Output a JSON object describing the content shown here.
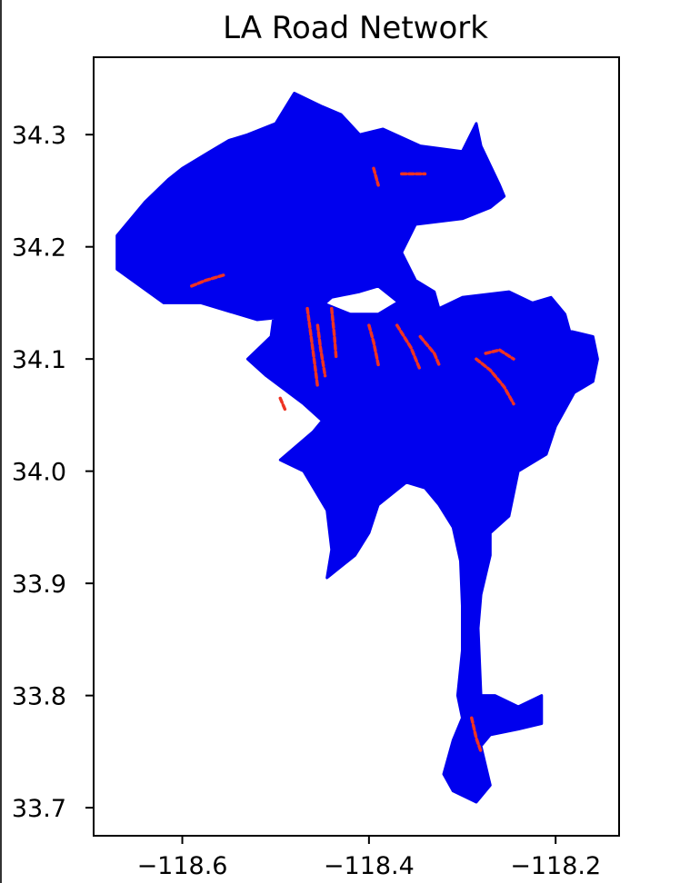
{
  "chart_data": {
    "type": "map",
    "title": "LA Road Network",
    "xlabel": "",
    "ylabel": "",
    "xlim": [
      -118.695,
      -118.132
    ],
    "ylim": [
      33.675,
      34.369
    ],
    "x_ticks": [
      -118.6,
      -118.4,
      -118.2
    ],
    "x_tick_labels": [
      "−118.6",
      "−118.4",
      "−118.2"
    ],
    "y_ticks": [
      33.7,
      33.8,
      33.9,
      34.0,
      34.1,
      34.2,
      34.3
    ],
    "y_tick_labels": [
      "33.7",
      "33.8",
      "33.9",
      "34.0",
      "34.1",
      "34.2",
      "34.3"
    ],
    "grid": false,
    "series": [
      {
        "color": "#0000ee",
        "outline": [
          [
            -118.48,
            34.337
          ],
          [
            -118.45,
            34.325
          ],
          [
            -118.43,
            34.318
          ],
          [
            -118.41,
            34.3
          ],
          [
            -118.385,
            34.305
          ],
          [
            -118.345,
            34.29
          ],
          [
            -118.3,
            34.285
          ],
          [
            -118.285,
            34.31
          ],
          [
            -118.28,
            34.29
          ],
          [
            -118.26,
            34.255
          ],
          [
            -118.255,
            34.245
          ],
          [
            -118.27,
            34.235
          ],
          [
            -118.3,
            34.225
          ],
          [
            -118.35,
            34.22
          ],
          [
            -118.365,
            34.195
          ],
          [
            -118.35,
            34.17
          ],
          [
            -118.33,
            34.16
          ],
          [
            -118.325,
            34.145
          ],
          [
            -118.3,
            34.155
          ],
          [
            -118.25,
            34.16
          ],
          [
            -118.225,
            34.15
          ],
          [
            -118.205,
            34.155
          ],
          [
            -118.19,
            34.14
          ],
          [
            -118.185,
            34.125
          ],
          [
            -118.16,
            34.12
          ],
          [
            -118.155,
            34.1
          ],
          [
            -118.16,
            34.08
          ],
          [
            -118.18,
            34.07
          ],
          [
            -118.2,
            34.04
          ],
          [
            -118.21,
            34.015
          ],
          [
            -118.24,
            34.0
          ],
          [
            -118.245,
            33.98
          ],
          [
            -118.25,
            33.96
          ],
          [
            -118.27,
            33.945
          ],
          [
            -118.27,
            33.925
          ],
          [
            -118.28,
            33.89
          ],
          [
            -118.283,
            33.86
          ],
          [
            -118.28,
            33.8
          ],
          [
            -118.265,
            33.8
          ],
          [
            -118.24,
            33.79
          ],
          [
            -118.215,
            33.8
          ],
          [
            -118.215,
            33.775
          ],
          [
            -118.24,
            33.77
          ],
          [
            -118.27,
            33.765
          ],
          [
            -118.28,
            33.755
          ],
          [
            -118.27,
            33.72
          ],
          [
            -118.285,
            33.705
          ],
          [
            -118.31,
            33.715
          ],
          [
            -118.32,
            33.73
          ],
          [
            -118.31,
            33.76
          ],
          [
            -118.3,
            33.78
          ],
          [
            -118.305,
            33.8
          ],
          [
            -118.3,
            33.84
          ],
          [
            -118.3,
            33.88
          ],
          [
            -118.302,
            33.92
          ],
          [
            -118.31,
            33.95
          ],
          [
            -118.325,
            33.97
          ],
          [
            -118.34,
            33.985
          ],
          [
            -118.36,
            33.99
          ],
          [
            -118.39,
            33.97
          ],
          [
            -118.4,
            33.945
          ],
          [
            -118.415,
            33.925
          ],
          [
            -118.445,
            33.905
          ],
          [
            -118.44,
            33.93
          ],
          [
            -118.445,
            33.965
          ],
          [
            -118.47,
            34.0
          ],
          [
            -118.495,
            34.01
          ],
          [
            -118.46,
            34.035
          ],
          [
            -118.45,
            34.045
          ],
          [
            -118.47,
            34.06
          ],
          [
            -118.51,
            34.085
          ],
          [
            -118.53,
            34.1
          ],
          [
            -118.505,
            34.12
          ],
          [
            -118.5,
            34.15
          ],
          [
            -118.47,
            34.17
          ],
          [
            -118.45,
            34.15
          ],
          [
            -118.42,
            34.14
          ],
          [
            -118.39,
            34.14
          ],
          [
            -118.37,
            34.15
          ],
          [
            -118.36,
            34.145
          ],
          [
            -118.39,
            34.165
          ],
          [
            -118.41,
            34.16
          ],
          [
            -118.44,
            34.155
          ],
          [
            -118.46,
            34.14
          ],
          [
            -118.52,
            34.135
          ],
          [
            -118.58,
            34.15
          ],
          [
            -118.62,
            34.15
          ],
          [
            -118.67,
            34.18
          ],
          [
            -118.67,
            34.21
          ],
          [
            -118.64,
            34.24
          ],
          [
            -118.615,
            34.26
          ],
          [
            -118.6,
            34.27
          ],
          [
            -118.57,
            34.285
          ],
          [
            -118.55,
            34.295
          ],
          [
            -118.53,
            34.3
          ],
          [
            -118.5,
            34.31
          ]
        ]
      },
      {
        "color": "#ee3322",
        "segments": [
          [
            [
              -118.466,
              34.145
            ],
            [
              -118.462,
              34.12
            ],
            [
              -118.458,
              34.095
            ],
            [
              -118.455,
              34.075
            ]
          ],
          [
            [
              -118.455,
              34.13
            ],
            [
              -118.452,
              34.11
            ],
            [
              -118.448,
              34.09
            ],
            [
              -118.447,
              34.085
            ]
          ],
          [
            [
              -118.44,
              34.145
            ],
            [
              -118.437,
              34.12
            ],
            [
              -118.435,
              34.1
            ]
          ],
          [
            [
              -118.4,
              34.13
            ],
            [
              -118.395,
              34.115
            ],
            [
              -118.39,
              34.095
            ]
          ],
          [
            [
              -118.37,
              34.13
            ],
            [
              -118.355,
              34.11
            ],
            [
              -118.345,
              34.09
            ]
          ],
          [
            [
              -118.345,
              34.12
            ],
            [
              -118.33,
              34.105
            ],
            [
              -118.325,
              34.095
            ]
          ],
          [
            [
              -118.285,
              34.1
            ],
            [
              -118.27,
              34.09
            ],
            [
              -118.255,
              34.075
            ],
            [
              -118.245,
              34.06
            ]
          ],
          [
            [
              -118.275,
              34.105
            ],
            [
              -118.26,
              34.108
            ],
            [
              -118.245,
              34.1
            ]
          ],
          [
            [
              -118.59,
              34.165
            ],
            [
              -118.575,
              34.17
            ],
            [
              -118.555,
              34.175
            ]
          ],
          [
            [
              -118.395,
              34.27
            ],
            [
              -118.39,
              34.255
            ]
          ],
          [
            [
              -118.365,
              34.265
            ],
            [
              -118.34,
              34.265
            ]
          ],
          [
            [
              -118.29,
              33.78
            ],
            [
              -118.285,
              33.762
            ],
            [
              -118.28,
              33.75
            ]
          ],
          [
            [
              -118.495,
              34.065
            ],
            [
              -118.49,
              34.055
            ]
          ]
        ]
      }
    ]
  }
}
